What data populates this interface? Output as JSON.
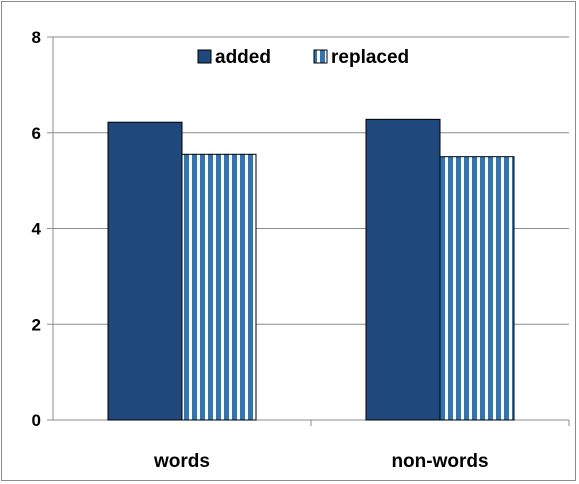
{
  "chart_data": {
    "type": "bar",
    "categories": [
      "words",
      "non-words"
    ],
    "series": [
      {
        "name": "added",
        "values": [
          6.22,
          6.28
        ],
        "color": "#1F497D",
        "pattern": "solid"
      },
      {
        "name": "replaced",
        "values": [
          5.55,
          5.5
        ],
        "color": "#2E75B6",
        "pattern": "vertical-stripes"
      }
    ],
    "title": "",
    "xlabel": "",
    "ylabel": "",
    "ylim": [
      0,
      8
    ],
    "yticks": [
      0,
      2,
      4,
      6,
      8
    ],
    "grid": true,
    "legend_position": "top"
  }
}
